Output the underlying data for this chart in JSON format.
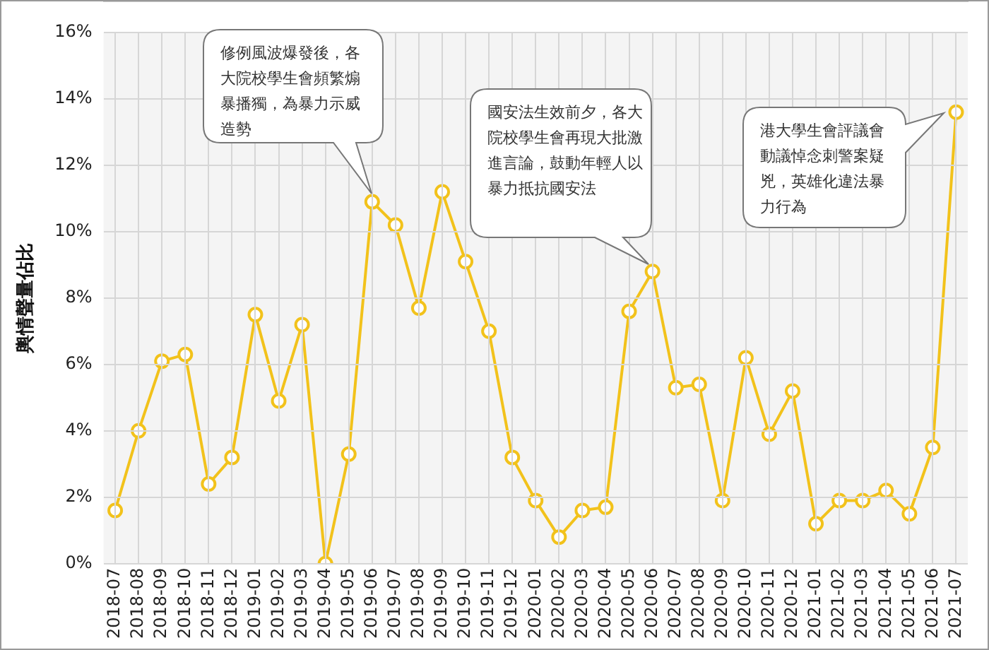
{
  "chart_data": {
    "type": "line",
    "ylabel": "輿情聲量佔比",
    "categories": [
      "2018-07",
      "2018-08",
      "2018-09",
      "2018-10",
      "2018-11",
      "2018-12",
      "2019-01",
      "2019-02",
      "2019-03",
      "2019-04",
      "2019-05",
      "2019-06",
      "2019-07",
      "2019-08",
      "2019-09",
      "2019-10",
      "2019-11",
      "2019-12",
      "2020-01",
      "2020-02",
      "2020-03",
      "2020-04",
      "2020-05",
      "2020-06",
      "2020-07",
      "2020-08",
      "2020-09",
      "2020-10",
      "2020-11",
      "2020-12",
      "2021-01",
      "2021-02",
      "2021-03",
      "2021-04",
      "2021-05",
      "2021-06",
      "2021-07"
    ],
    "series": [
      {
        "color": "#f2c21b",
        "values": [
          1.6,
          4.0,
          6.1,
          6.3,
          2.4,
          3.2,
          7.5,
          4.9,
          7.2,
          0,
          3.3,
          10.9,
          10.2,
          7.7,
          11.2,
          9.1,
          7.0,
          3.2,
          1.9,
          0.8,
          1.6,
          1.7,
          7.6,
          8.8,
          5.3,
          5.4,
          1.9,
          6.2,
          3.9,
          5.2,
          1.2,
          1.9,
          1.9,
          2.2,
          1.5,
          3.5,
          13.6
        ]
      }
    ],
    "ylim": [
      0,
      16
    ],
    "yticks": [
      {
        "value": 0,
        "label": "0%"
      },
      {
        "value": 2,
        "label": "2%"
      },
      {
        "value": 4,
        "label": "4%"
      },
      {
        "value": 6,
        "label": "6%"
      },
      {
        "value": 8,
        "label": "8%"
      },
      {
        "value": 10,
        "label": "10%"
      },
      {
        "value": 12,
        "label": "12%"
      },
      {
        "value": 14,
        "label": "14%"
      },
      {
        "value": 16,
        "label": "16%"
      }
    ],
    "grid": true,
    "legend": false,
    "marker": "circle",
    "line_style": "solid",
    "annotations": [
      "修例風波爆發後，各大院校學生會頻繁煽暴播獨，為暴力示威造勢",
      "國安法生效前夕，各大院校學生會再現大批激進言論，鼓動年輕人以暴力抵抗國安法",
      "港大學生會評議會動議悼念刺警案疑兇，英雄化違法暴力行為"
    ]
  }
}
